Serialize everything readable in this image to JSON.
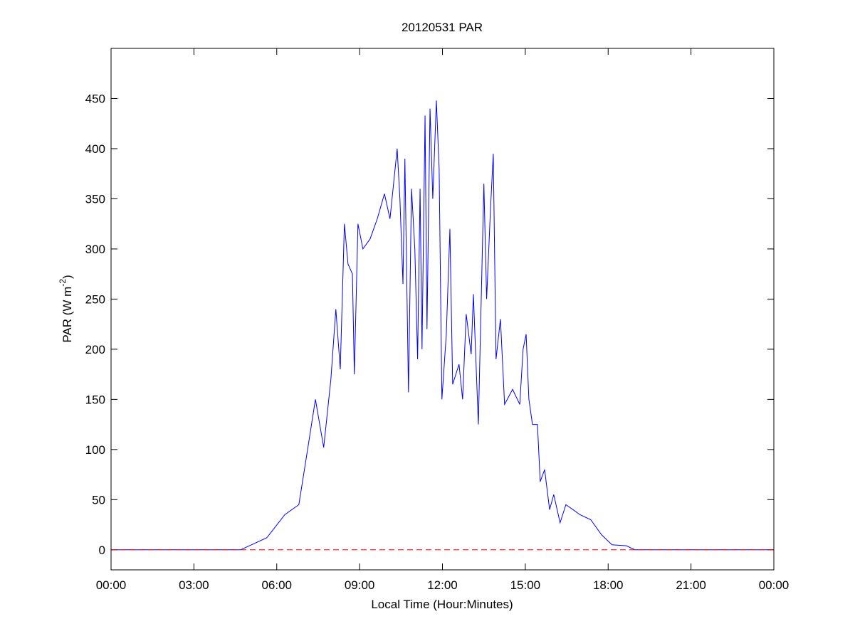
{
  "chart_data": {
    "type": "line",
    "title": "20120531 PAR",
    "x_label": "Local Time (Hour:Minutes)",
    "y_label": {
      "text": "PAR (W m",
      "superscript": "-2",
      "suffix": ")"
    },
    "xlim": [
      0,
      24
    ],
    "xticks": [
      {
        "value": 0,
        "label": "00:00"
      },
      {
        "value": 3,
        "label": "03:00"
      },
      {
        "value": 6,
        "label": "06:00"
      },
      {
        "value": 9,
        "label": "09:00"
      },
      {
        "value": 12,
        "label": "12:00"
      },
      {
        "value": 15,
        "label": "15:00"
      },
      {
        "value": 18,
        "label": "18:00"
      },
      {
        "value": 21,
        "label": "21:00"
      },
      {
        "value": 24,
        "label": "00:00"
      }
    ],
    "ylim": [
      -20,
      500
    ],
    "yticks": [
      0,
      50,
      100,
      150,
      200,
      250,
      300,
      350,
      400,
      450
    ],
    "grid": false,
    "reference_line": {
      "value": 0,
      "color": "#ff0000",
      "style": "dashed"
    },
    "series": [
      {
        "color": "#0000ff",
        "x": [
          0,
          4.69,
          5.64,
          6.29,
          6.8,
          7.06,
          7.4,
          7.7,
          7.96,
          8.14,
          8.3,
          8.45,
          8.58,
          8.74,
          8.81,
          8.94,
          9.12,
          9.38,
          9.64,
          9.9,
          10.1,
          10.36,
          10.46,
          10.57,
          10.64,
          10.77,
          10.88,
          11.0,
          11.1,
          11.19,
          11.26,
          11.37,
          11.44,
          11.55,
          11.65,
          11.78,
          11.88,
          11.98,
          12.14,
          12.27,
          12.37,
          12.6,
          12.73,
          12.86,
          13.04,
          13.12,
          13.3,
          13.5,
          13.6,
          13.74,
          13.84,
          13.94,
          14.1,
          14.25,
          14.54,
          14.8,
          14.92,
          15.03,
          15.13,
          15.26,
          15.44,
          15.54,
          15.7,
          15.88,
          16.03,
          16.26,
          16.47,
          16.73,
          16.98,
          17.37,
          17.76,
          18.14,
          18.66,
          18.97,
          24
        ],
        "values": [
          0,
          0,
          12,
          35,
          45,
          90,
          150,
          102,
          170,
          240,
          180,
          325,
          285,
          275,
          175,
          325,
          300,
          310,
          330,
          355,
          330,
          400,
          350,
          265,
          390,
          157,
          360,
          300,
          190,
          360,
          200,
          433,
          220,
          440,
          350,
          448,
          380,
          150,
          215,
          320,
          165,
          185,
          150,
          235,
          195,
          255,
          125,
          365,
          250,
          340,
          395,
          190,
          230,
          145,
          160,
          145,
          200,
          215,
          150,
          125,
          125,
          68,
          80,
          40,
          55,
          27,
          45,
          40,
          35,
          30,
          15,
          5,
          4,
          0,
          0
        ]
      }
    ]
  }
}
